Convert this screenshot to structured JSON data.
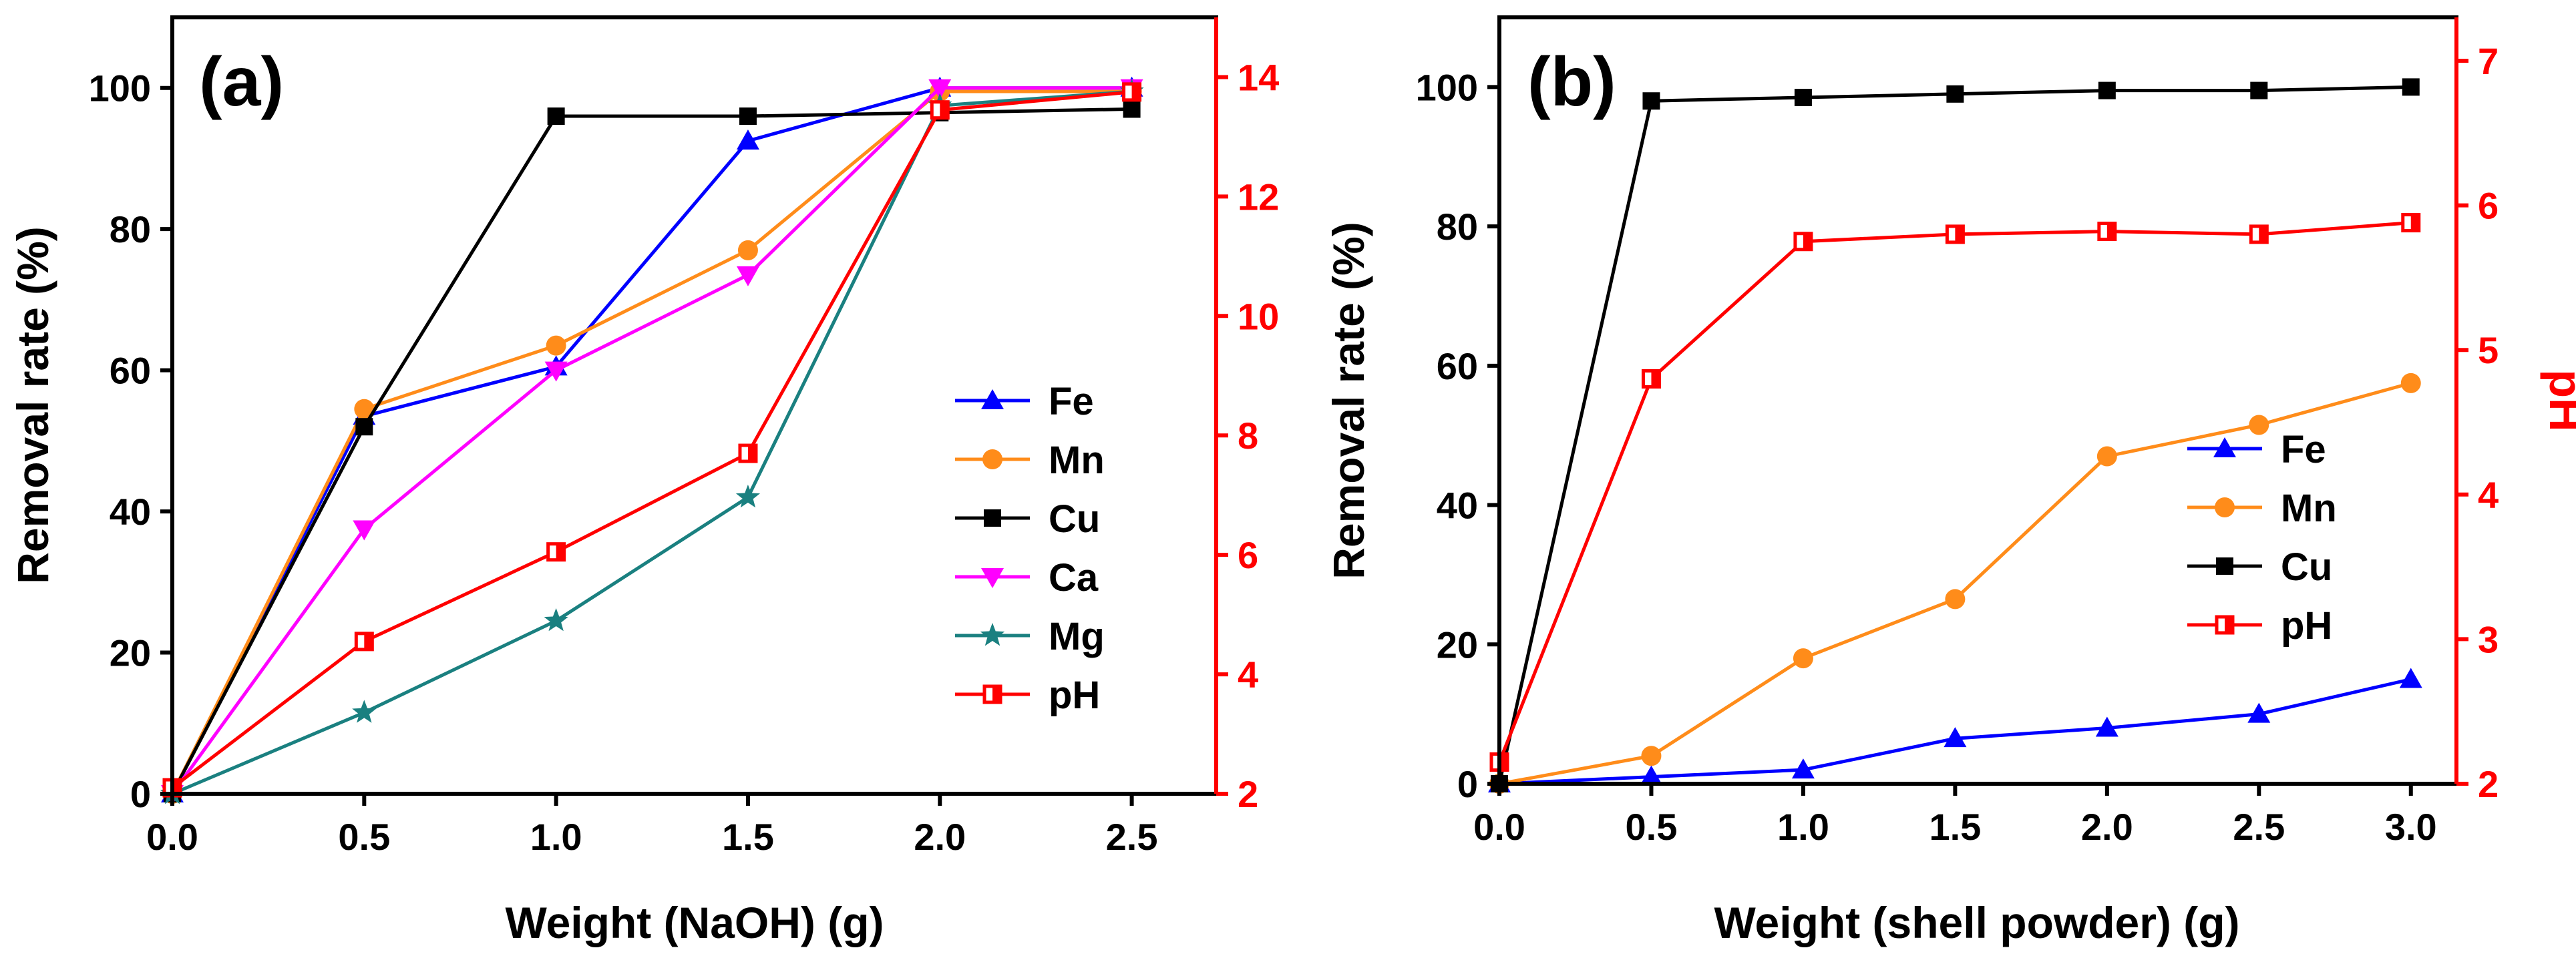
{
  "chart_data": [
    {
      "type": "line",
      "panel_label": "(a)",
      "xlabel": "Weight (NaOH) (g)",
      "ylabel": "Removal rate (%)",
      "y2label": "",
      "xlim": [
        0,
        2.72
      ],
      "ylim": [
        0,
        110
      ],
      "y2lim": [
        2,
        15
      ],
      "x_ticks": [
        "0.0",
        "0.5",
        "1.0",
        "1.5",
        "2.0",
        "2.5"
      ],
      "y_ticks": [
        "0",
        "20",
        "40",
        "60",
        "80",
        "100"
      ],
      "y2_ticks": [
        "2",
        "4",
        "6",
        "8",
        "10",
        "12",
        "14"
      ],
      "x": [
        0,
        0.5,
        1.0,
        1.5,
        2.0,
        2.5
      ],
      "legend_position": "center-right",
      "series": [
        {
          "name": "Fe",
          "axis": "left",
          "color": "#0000ff",
          "marker": "triangle-up",
          "values": [
            0,
            53.5,
            60.5,
            92.5,
            100,
            100
          ]
        },
        {
          "name": "Mn",
          "axis": "left",
          "color": "#ff8c1a",
          "marker": "circle",
          "values": [
            0,
            54.5,
            63.5,
            77,
            99.5,
            99.5
          ]
        },
        {
          "name": "Cu",
          "axis": "left",
          "color": "#000000",
          "marker": "square",
          "values": [
            0,
            52,
            96,
            96,
            96.5,
            97
          ]
        },
        {
          "name": "Ca",
          "axis": "left",
          "color": "#ff00ff",
          "marker": "triangle-down",
          "values": [
            0,
            37.5,
            60,
            73.5,
            100,
            100
          ]
        },
        {
          "name": "Mg",
          "axis": "left",
          "color": "#1a8080",
          "marker": "star",
          "values": [
            0,
            11.5,
            24.5,
            42,
            97.5,
            99.5
          ]
        },
        {
          "name": "pH",
          "axis": "right",
          "color": "#ff0000",
          "marker": "half-square",
          "values": [
            2.1,
            4.55,
            6.05,
            7.7,
            13.45,
            13.75
          ]
        }
      ]
    },
    {
      "type": "line",
      "panel_label": "(b)",
      "xlabel": "Weight (shell powder) (g)",
      "ylabel": "Removal rate (%)",
      "y2label": "pH",
      "xlim": [
        0,
        3.15
      ],
      "ylim": [
        0,
        110
      ],
      "y2lim": [
        2,
        7.3
      ],
      "x_ticks": [
        "0.0",
        "0.5",
        "1.0",
        "1.5",
        "2.0",
        "2.5",
        "3.0"
      ],
      "y_ticks": [
        "0",
        "20",
        "40",
        "60",
        "80",
        "100"
      ],
      "y2_ticks": [
        "2",
        "3",
        "4",
        "5",
        "6",
        "7"
      ],
      "x": [
        0,
        0.5,
        1.0,
        1.5,
        2.0,
        2.5,
        3.0
      ],
      "legend_position": "center-right",
      "series": [
        {
          "name": "Fe",
          "axis": "left",
          "color": "#0000ff",
          "marker": "triangle-up",
          "values": [
            0,
            1,
            2,
            6.5,
            8,
            10,
            15
          ]
        },
        {
          "name": "Mn",
          "axis": "left",
          "color": "#ff8c1a",
          "marker": "circle",
          "values": [
            0,
            4,
            18,
            26.5,
            47,
            51.5,
            57.5
          ]
        },
        {
          "name": "Cu",
          "axis": "left",
          "color": "#000000",
          "marker": "square",
          "values": [
            0,
            98,
            98.5,
            99,
            99.5,
            99.5,
            100
          ]
        },
        {
          "name": "pH",
          "axis": "right",
          "color": "#ff0000",
          "marker": "half-square",
          "values": [
            2.15,
            4.8,
            5.75,
            5.8,
            5.82,
            5.8,
            5.88
          ]
        }
      ]
    }
  ]
}
